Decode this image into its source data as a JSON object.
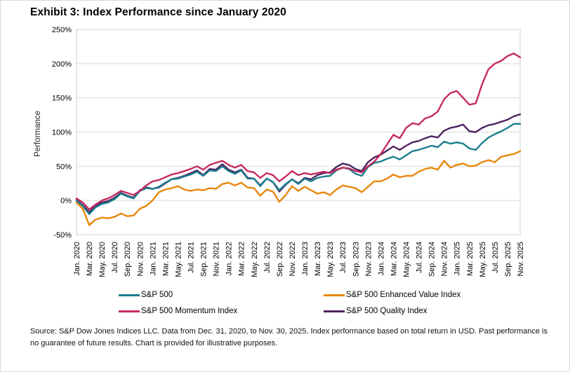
{
  "title": "Exhibit 3: Index Performance since January 2020",
  "source_text": "Source: S&P Dow Jones Indices LLC. Data from Dec. 31, 2020, to Nov. 30, 2025. Index performance based on total return in USD. Past performance is no guarantee of future results. Chart is provided for illustrative purposes.",
  "legend": {
    "items": [
      {
        "label": "S&P 500",
        "color": "#1B7F8E"
      },
      {
        "label": "S&P 500 Enhanced Value Index",
        "color": "#E8860C"
      },
      {
        "label": "S&P 500 Momentum Index",
        "color": "#C62A5F"
      },
      {
        "label": "S&P 500 Quality Index",
        "color": "#4F2361"
      }
    ]
  },
  "chart_data": {
    "type": "line",
    "title": "Exhibit 3: Index Performance since January 2020",
    "xlabel": "",
    "ylabel": "Performance",
    "ylim": [
      -50,
      250
    ],
    "grid": true,
    "legend_position": "bottom",
    "x_frequency": "monthly, Jan. 2020 to Nov. 2025",
    "yticks": [
      {
        "value": 250,
        "label": "250%"
      },
      {
        "value": 200,
        "label": "200%"
      },
      {
        "value": 150,
        "label": "150%"
      },
      {
        "value": 100,
        "label": "100%"
      },
      {
        "value": 50,
        "label": "50%"
      },
      {
        "value": 0,
        "label": "0%"
      },
      {
        "value": -50,
        "label": "-50%"
      }
    ],
    "x_tick_labels": [
      "Jan. 2020",
      "Mar. 2020",
      "May. 2020",
      "Jul. 2020",
      "Sep. 2020",
      "Nov. 2020",
      "Jan. 2021",
      "Mar. 2021",
      "May. 2021",
      "Jul. 2021",
      "Sep. 2021",
      "Nov. 2021",
      "Jan. 2022",
      "Mar. 2022",
      "May. 2022",
      "Jul. 2022",
      "Sep. 2022",
      "Nov. 2022",
      "Jan. 2023",
      "Mar. 2023",
      "May. 2023",
      "Jul. 2023",
      "Sep. 2023",
      "Nov. 2023",
      "Jan. 2024",
      "Mar. 2024",
      "May. 2024",
      "Jul. 2024",
      "Sep. 2024",
      "Nov. 2024",
      "Jan. 2025",
      "Mar. 2025",
      "May. 2025",
      "Jul. 2025",
      "Sep. 2025",
      "Nov. 2025"
    ],
    "draw_order": [
      2,
      3,
      0,
      1
    ],
    "series": [
      {
        "id": "sp500",
        "name": "S&P 500",
        "color": "#1B7F8E",
        "values": [
          0,
          -8,
          -20,
          -10,
          -5,
          -3,
          2,
          10,
          6,
          3,
          14,
          18,
          17,
          20,
          26,
          31,
          32,
          35,
          38,
          42,
          36,
          44,
          43,
          50,
          43,
          39,
          44,
          32,
          32,
          21,
          32,
          27,
          15,
          24,
          31,
          24,
          32,
          28,
          33,
          35,
          36,
          44,
          48,
          46,
          39,
          36,
          49,
          55,
          57,
          61,
          64,
          60,
          66,
          72,
          74,
          77,
          80,
          78,
          86,
          83,
          85,
          83,
          76,
          74,
          84,
          92,
          97,
          101,
          106,
          112,
          112
        ]
      },
      {
        "id": "momentum",
        "name": "S&P 500 Momentum Index",
        "color": "#C62A5F",
        "values": [
          3,
          -3,
          -13,
          -6,
          0,
          3,
          8,
          14,
          11,
          8,
          14,
          22,
          28,
          30,
          34,
          38,
          40,
          43,
          46,
          50,
          45,
          52,
          55,
          58,
          52,
          48,
          52,
          43,
          41,
          33,
          40,
          37,
          28,
          35,
          43,
          37,
          40,
          38,
          40,
          42,
          40,
          45,
          48,
          47,
          43,
          41,
          50,
          57,
          68,
          82,
          96,
          91,
          106,
          113,
          111,
          120,
          123,
          130,
          148,
          157,
          160,
          150,
          140,
          142,
          170,
          192,
          200,
          204,
          211,
          215,
          209
        ]
      },
      {
        "id": "enhanced_value",
        "name": "S&P 500 Enhanced Value Index",
        "color": "#E8860C",
        "values": [
          -3,
          -12,
          -36,
          -28,
          -25,
          -26,
          -24,
          -19,
          -23,
          -22,
          -12,
          -8,
          0,
          12,
          16,
          18,
          21,
          16,
          14,
          16,
          15,
          18,
          17,
          24,
          26,
          22,
          26,
          19,
          18,
          7,
          16,
          13,
          -2,
          8,
          21,
          14,
          20,
          15,
          10,
          12,
          8,
          16,
          22,
          20,
          18,
          12,
          20,
          28,
          28,
          32,
          38,
          34,
          36,
          36,
          42,
          46,
          48,
          45,
          58,
          48,
          52,
          54,
          50,
          51,
          56,
          59,
          56,
          64,
          66,
          68,
          72
        ]
      },
      {
        "id": "quality",
        "name": "S&P 500 Quality Index",
        "color": "#4F2361",
        "values": [
          1,
          -7,
          -17,
          -8,
          -3,
          -1,
          4,
          11,
          7,
          4,
          15,
          19,
          17,
          19,
          25,
          31,
          33,
          36,
          40,
          44,
          37,
          46,
          45,
          53,
          45,
          41,
          45,
          33,
          32,
          22,
          32,
          27,
          13,
          23,
          31,
          25,
          33,
          31,
          37,
          40,
          41,
          49,
          54,
          52,
          46,
          43,
          56,
          63,
          67,
          73,
          79,
          74,
          80,
          85,
          87,
          91,
          94,
          92,
          102,
          106,
          108,
          111,
          101,
          100,
          106,
          110,
          112,
          115,
          118,
          123,
          126
        ]
      }
    ]
  }
}
